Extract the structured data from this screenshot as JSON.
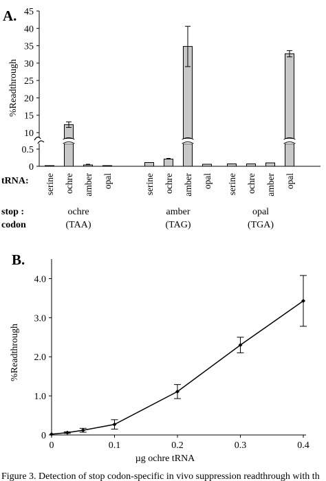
{
  "chart_data": [
    {
      "panel": "A.",
      "type": "bar",
      "ylabel": "%Readthrough",
      "ylim_lower": [
        0,
        0.5
      ],
      "ylim_upper": [
        10,
        45
      ],
      "yticks_lower": [
        "0",
        "0.5"
      ],
      "yticks_upper": [
        "10",
        "15",
        "20",
        "25",
        "30",
        "35",
        "40",
        "45"
      ],
      "trna_row_label": "tRNA:",
      "stop_row_label": "stop :",
      "codon_row_label": "codon",
      "groups": [
        {
          "stop": "ochre",
          "codon": "(TAA)",
          "bars": [
            {
              "trna": "serine",
              "value": 0.02,
              "error": 0
            },
            {
              "trna": "ochre",
              "value": 12.3,
              "error": 0.8
            },
            {
              "trna": "amber",
              "value": 0.04,
              "error": 0.02
            },
            {
              "trna": "opal",
              "value": 0.02,
              "error": 0
            }
          ]
        },
        {
          "stop": "amber",
          "codon": "(TAG)",
          "bars": [
            {
              "trna": "serine",
              "value": 0.11,
              "error": 0
            },
            {
              "trna": "ochre",
              "value": 0.21,
              "error": 0.02
            },
            {
              "trna": "amber",
              "value": 34.8,
              "error": 5.8
            },
            {
              "trna": "opal",
              "value": 0.06,
              "error": 0
            }
          ]
        },
        {
          "stop": "opal",
          "codon": "(TGA)",
          "bars": [
            {
              "trna": "serine",
              "value": 0.07,
              "error": 0
            },
            {
              "trna": "ochre",
              "value": 0.07,
              "error": 0
            },
            {
              "trna": "amber",
              "value": 0.1,
              "error": 0
            },
            {
              "trna": "opal",
              "value": 32.7,
              "error": 0.9
            }
          ]
        }
      ],
      "bar_color": "#c8c8c8"
    },
    {
      "panel": "B.",
      "type": "line",
      "xlabel": "µg ochre tRNA",
      "ylabel": "%Readthrough",
      "xlim": [
        0,
        0.4
      ],
      "ylim": [
        0,
        4.5
      ],
      "xticks": [
        "0",
        "0.1",
        "0.2",
        "0.3",
        "0.4"
      ],
      "yticks": [
        "0",
        "1.0",
        "2.0",
        "3.0",
        "4.0"
      ],
      "x": [
        0,
        0.025,
        0.05,
        0.1,
        0.2,
        0.3,
        0.4
      ],
      "y": [
        0.02,
        0.06,
        0.12,
        0.27,
        1.11,
        2.3,
        3.43
      ],
      "error": [
        0,
        0.02,
        0.05,
        0.12,
        0.18,
        0.2,
        0.65
      ]
    }
  ],
  "caption": "Figure 3. Detection of stop codon-specific in vivo suppression readthrough with th"
}
